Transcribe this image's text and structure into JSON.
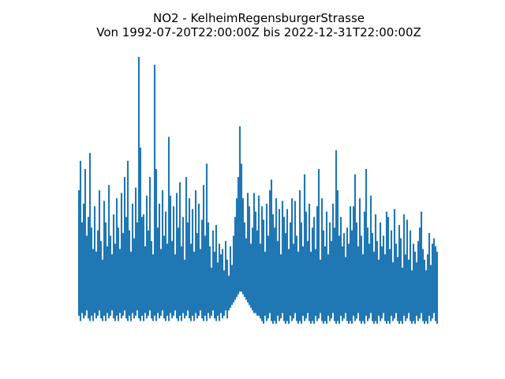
{
  "chart_data": {
    "type": "line",
    "title": "NO2 - KelheimRegensburgerStrasse",
    "subtitle": "Von 1992-07-20T22:00:00Z bis 2022-12-31T22:00:00Z",
    "series_name": "NO2",
    "station": "KelheimRegensburgerStrasse",
    "x_start": "1992-07-20T22:00:00Z",
    "x_end": "2022-12-31T22:00:00Z",
    "line_color": "#1f77b4",
    "text_color": "#000000",
    "background_color": "#ffffff",
    "axes_visible": false,
    "grid": false,
    "legend": false,
    "ylim": [
      0,
      100
    ],
    "n_columns": 228,
    "upper_envelope": [
      50,
      61,
      38,
      45,
      58,
      33,
      40,
      64,
      36,
      28,
      44,
      27,
      35,
      50,
      31,
      24,
      46,
      38,
      29,
      52,
      33,
      26,
      41,
      30,
      47,
      36,
      28,
      49,
      34,
      55,
      40,
      61,
      35,
      27,
      45,
      32,
      51,
      38,
      100,
      66,
      40,
      41,
      29,
      48,
      35,
      55,
      31,
      26,
      97,
      58,
      36,
      45,
      28,
      50,
      33,
      42,
      30,
      70,
      48,
      31,
      44,
      26,
      49,
      36,
      53,
      29,
      40,
      24,
      55,
      38,
      47,
      30,
      43,
      27,
      50,
      34,
      45,
      28,
      39,
      52,
      33,
      60,
      38,
      29,
      21,
      35,
      27,
      37,
      23,
      30,
      26,
      28,
      20,
      31,
      24,
      18,
      29,
      22,
      33,
      40,
      47,
      55,
      74,
      60,
      47,
      38,
      32,
      49,
      44,
      30,
      36,
      49,
      42,
      35,
      48,
      30,
      44,
      39,
      27,
      45,
      33,
      50,
      54,
      41,
      36,
      47,
      31,
      43,
      26,
      46,
      40,
      34,
      43,
      28,
      38,
      47,
      30,
      46,
      33,
      27,
      50,
      38,
      29,
      56,
      42,
      31,
      45,
      27,
      36,
      40,
      28,
      44,
      58,
      24,
      47,
      35,
      29,
      42,
      26,
      38,
      31,
      45,
      36,
      65,
      50,
      33,
      40,
      29,
      34,
      25,
      36,
      30,
      44,
      35,
      44,
      56,
      38,
      29,
      47,
      33,
      26,
      42,
      58,
      36,
      30,
      48,
      34,
      27,
      41,
      31,
      24,
      38,
      29,
      33,
      26,
      42,
      40,
      28,
      35,
      23,
      43,
      30,
      25,
      37,
      32,
      21,
      41,
      26,
      39,
      24,
      35,
      20,
      30,
      27,
      23,
      31,
      36,
      42,
      28,
      24,
      20,
      26,
      34,
      22,
      30,
      32,
      29,
      27
    ],
    "lower_envelope": [
      3,
      1,
      4,
      2,
      3,
      5,
      2,
      1,
      3,
      1,
      4,
      2,
      3,
      5,
      2,
      1,
      3,
      1,
      4,
      2,
      3,
      5,
      2,
      1,
      3,
      1,
      4,
      2,
      3,
      5,
      2,
      1,
      3,
      1,
      4,
      2,
      3,
      5,
      2,
      1,
      3,
      1,
      4,
      2,
      3,
      5,
      2,
      1,
      3,
      1,
      4,
      2,
      3,
      5,
      2,
      1,
      3,
      1,
      4,
      2,
      3,
      5,
      2,
      1,
      3,
      1,
      4,
      2,
      3,
      5,
      2,
      1,
      3,
      1,
      4,
      2,
      3,
      5,
      2,
      1,
      3,
      1,
      4,
      2,
      3,
      5,
      2,
      1,
      3,
      1,
      4,
      2,
      3,
      5,
      2,
      5,
      6,
      7,
      8,
      9,
      10,
      11,
      12,
      12,
      11,
      10,
      9,
      8,
      7,
      6,
      5,
      4,
      4,
      3,
      3,
      2,
      1,
      0,
      3,
      1,
      2,
      4,
      1,
      0,
      1,
      0,
      3,
      1,
      2,
      4,
      1,
      0,
      1,
      0,
      3,
      1,
      2,
      4,
      1,
      0,
      1,
      0,
      3,
      1,
      2,
      4,
      1,
      0,
      1,
      0,
      3,
      1,
      2,
      4,
      1,
      0,
      1,
      0,
      3,
      1,
      2,
      4,
      1,
      0,
      1,
      0,
      3,
      1,
      2,
      4,
      1,
      0,
      1,
      0,
      3,
      1,
      2,
      4,
      1,
      0,
      1,
      0,
      3,
      1,
      2,
      4,
      1,
      0,
      1,
      0,
      3,
      1,
      2,
      4,
      1,
      0,
      1,
      0,
      3,
      1,
      2,
      4,
      1,
      0,
      1,
      0,
      3,
      1,
      2,
      4,
      1,
      0,
      1,
      0,
      3,
      1,
      2,
      4,
      1,
      0,
      1,
      0,
      3,
      1,
      2,
      4,
      1,
      0
    ]
  }
}
